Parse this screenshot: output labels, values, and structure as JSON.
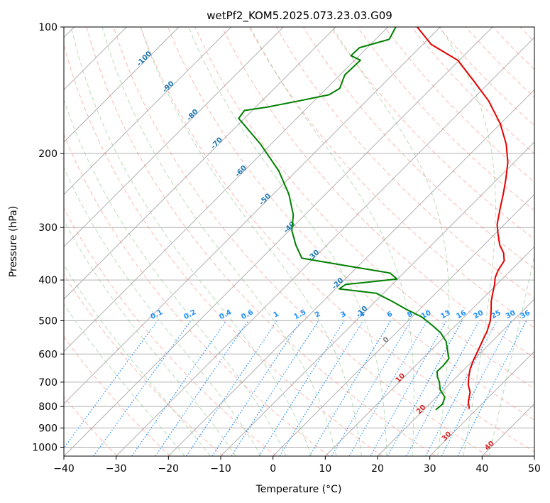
{
  "chart_data": {
    "type": "line",
    "title": "wetPf2_KOM5.2025.073.23.03.G09",
    "xlabel": "Temperature (°C)",
    "ylabel": "Pressure (hPa)",
    "xlim": [
      -40,
      50
    ],
    "ylim": [
      1050,
      100
    ],
    "y_scale": "log",
    "skew_deg": 45,
    "x_ticks": [
      -40,
      -30,
      -20,
      -10,
      0,
      10,
      20,
      30,
      40,
      50
    ],
    "y_ticks": [
      100,
      200,
      300,
      400,
      500,
      600,
      700,
      800,
      900,
      1000
    ],
    "grid": true,
    "series": [
      {
        "color": "#e60000",
        "points": [
          {
            "p": 810,
            "t": 28.5
          },
          {
            "p": 780,
            "t": 27.0
          },
          {
            "p": 740,
            "t": 25.5
          },
          {
            "p": 710,
            "t": 23.7
          },
          {
            "p": 680,
            "t": 22.3
          },
          {
            "p": 650,
            "t": 21.0
          },
          {
            "p": 620,
            "t": 20.0
          },
          {
            "p": 590,
            "t": 19.1
          },
          {
            "p": 560,
            "t": 18.1
          },
          {
            "p": 530,
            "t": 17.1
          },
          {
            "p": 500,
            "t": 15.7
          },
          {
            "p": 470,
            "t": 13.7
          },
          {
            "p": 450,
            "t": 12.2
          },
          {
            "p": 430,
            "t": 10.9
          },
          {
            "p": 410,
            "t": 9.6
          },
          {
            "p": 395,
            "t": 8.4
          },
          {
            "p": 380,
            "t": 7.6
          },
          {
            "p": 360,
            "t": 6.9
          },
          {
            "p": 345,
            "t": 5.3
          },
          {
            "p": 330,
            "t": 3.0
          },
          {
            "p": 310,
            "t": 0.5
          },
          {
            "p": 295,
            "t": -1.4
          },
          {
            "p": 270,
            "t": -3.9
          },
          {
            "p": 250,
            "t": -6.0
          },
          {
            "p": 230,
            "t": -8.4
          },
          {
            "p": 210,
            "t": -11.2
          },
          {
            "p": 190,
            "t": -15.0
          },
          {
            "p": 170,
            "t": -20.0
          },
          {
            "p": 150,
            "t": -26.6
          },
          {
            "p": 135,
            "t": -33.0
          },
          {
            "p": 120,
            "t": -40.3
          },
          {
            "p": 110,
            "t": -48.4
          },
          {
            "p": 100,
            "t": -54.4
          }
        ]
      },
      {
        "color": "#008000",
        "points": [
          {
            "p": 815,
            "t": 22.3
          },
          {
            "p": 790,
            "t": 22.5
          },
          {
            "p": 760,
            "t": 21.6
          },
          {
            "p": 730,
            "t": 19.3
          },
          {
            "p": 700,
            "t": 17.7
          },
          {
            "p": 680,
            "t": 16.3
          },
          {
            "p": 660,
            "t": 15.2
          },
          {
            "p": 640,
            "t": 15.3
          },
          {
            "p": 615,
            "t": 15.0
          },
          {
            "p": 590,
            "t": 13.3
          },
          {
            "p": 560,
            "t": 11.2
          },
          {
            "p": 535,
            "t": 8.6
          },
          {
            "p": 515,
            "t": 5.8
          },
          {
            "p": 490,
            "t": 1.9
          },
          {
            "p": 470,
            "t": -2.5
          },
          {
            "p": 450,
            "t": -6.7
          },
          {
            "p": 430,
            "t": -11.4
          },
          {
            "p": 420,
            "t": -19.3
          },
          {
            "p": 410,
            "t": -18.9
          },
          {
            "p": 398,
            "t": -10.1
          },
          {
            "p": 385,
            "t": -12.6
          },
          {
            "p": 372,
            "t": -21.0
          },
          {
            "p": 355,
            "t": -32.3
          },
          {
            "p": 330,
            "t": -36.0
          },
          {
            "p": 305,
            "t": -39.5
          },
          {
            "p": 280,
            "t": -42.2
          },
          {
            "p": 250,
            "t": -47.0
          },
          {
            "p": 220,
            "t": -53.4
          },
          {
            "p": 190,
            "t": -62.0
          },
          {
            "p": 165,
            "t": -71.1
          },
          {
            "p": 158,
            "t": -71.5
          },
          {
            "p": 155,
            "t": -67.7
          },
          {
            "p": 150,
            "t": -63.0
          },
          {
            "p": 145,
            "t": -58.3
          },
          {
            "p": 140,
            "t": -57.5
          },
          {
            "p": 130,
            "t": -59.1
          },
          {
            "p": 120,
            "t": -58.9
          },
          {
            "p": 117,
            "t": -61.6
          },
          {
            "p": 112,
            "t": -61.5
          },
          {
            "p": 107,
            "t": -57.4
          },
          {
            "p": 100,
            "t": -58.5
          }
        ]
      }
    ],
    "isotherm_labels": [
      "-100",
      "-90",
      "-80",
      "-70",
      "-60",
      "-50",
      "-40",
      "-30",
      "-20",
      "-10",
      "0",
      "10",
      "20",
      "30",
      "40"
    ],
    "mixing_ratio_labels": [
      "0.1",
      "0.2",
      "0.4",
      "0.6",
      "1",
      "1.5",
      "2",
      "3",
      "4",
      "6",
      "8",
      "10",
      "13",
      "16",
      "20",
      "25",
      "30",
      "36"
    ],
    "mixing_ratio_values": [
      0.1,
      0.2,
      0.4,
      0.6,
      1,
      1.5,
      2,
      3,
      4,
      6,
      8,
      10,
      13,
      16,
      20,
      25,
      30,
      36
    ],
    "colors": {
      "temperature": "#e60000",
      "dewpoint": "#008000",
      "isotherm_label_cold": "#1f77b4",
      "isotherm_label_zero": "#808080",
      "isotherm_label_warm": "#d62728",
      "dry_adiabat": "#fa8072",
      "moist_adiabat": "#7fbf7f",
      "mixing_ratio": "#1e90ff",
      "grid": "#b0b0b0",
      "tan_curve": "#d2b48c"
    }
  }
}
